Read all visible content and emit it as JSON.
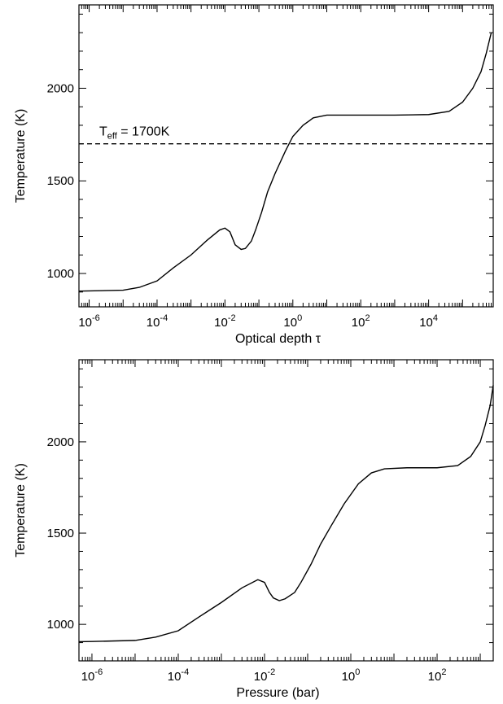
{
  "chart_data": [
    {
      "type": "line",
      "xlabel": "Optical depth τ",
      "ylabel": "Temperature (K)",
      "xscale": "log",
      "xlim": [
        5e-07,
        800000
      ],
      "ylim": [
        820,
        2450
      ],
      "x_ticks": [
        1e-06,
        0.0001,
        0.01,
        1,
        100,
        10000
      ],
      "x_tick_bases": [
        "10",
        "10",
        "10",
        "10",
        "10",
        "10"
      ],
      "x_tick_exponents": [
        "-6",
        "-4",
        "-2",
        "0",
        "2",
        "4"
      ],
      "y_ticks": [
        1000,
        1500,
        2000
      ],
      "y_tick_labels": [
        "1000",
        "1500",
        "2000"
      ],
      "reference_line": {
        "y": 1700,
        "style": "dashed",
        "label_main": "T",
        "label_sub": "eff",
        "label_rest": " = 1700K"
      },
      "series": [
        {
          "points": [
            [
              5e-07,
              905
            ],
            [
              1e-06,
              906
            ],
            [
              1e-05,
              910
            ],
            [
              3e-05,
              925
            ],
            [
              0.0001,
              960
            ],
            [
              0.0003,
              1030
            ],
            [
              0.001,
              1100
            ],
            [
              0.003,
              1180
            ],
            [
              0.007,
              1235
            ],
            [
              0.01,
              1245
            ],
            [
              0.014,
              1225
            ],
            [
              0.02,
              1155
            ],
            [
              0.03,
              1130
            ],
            [
              0.04,
              1135
            ],
            [
              0.06,
              1175
            ],
            [
              0.08,
              1235
            ],
            [
              0.12,
              1330
            ],
            [
              0.18,
              1440
            ],
            [
              0.3,
              1540
            ],
            [
              0.6,
              1660
            ],
            [
              1,
              1740
            ],
            [
              2,
              1800
            ],
            [
              4,
              1840
            ],
            [
              10,
              1855
            ],
            [
              100,
              1855
            ],
            [
              1000,
              1855
            ],
            [
              10000,
              1858
            ],
            [
              40000,
              1875
            ],
            [
              100000,
              1925
            ],
            [
              200000,
              2000
            ],
            [
              350000,
              2090
            ],
            [
              500000,
              2190
            ],
            [
              700000,
              2300
            ]
          ]
        }
      ]
    },
    {
      "type": "line",
      "xlabel": "Pressure (bar)",
      "ylabel": "Temperature (K)",
      "xscale": "log",
      "xlim": [
        5e-07,
        2000
      ],
      "ylim": [
        800,
        2450
      ],
      "x_ticks": [
        1e-06,
        0.0001,
        0.01,
        1,
        100
      ],
      "x_tick_bases": [
        "10",
        "10",
        "10",
        "10",
        "10"
      ],
      "x_tick_exponents": [
        "-6",
        "-4",
        "-2",
        "0",
        "2"
      ],
      "y_ticks": [
        1000,
        1500,
        2000
      ],
      "y_tick_labels": [
        "1000",
        "1500",
        "2000"
      ],
      "series": [
        {
          "points": [
            [
              5e-07,
              905
            ],
            [
              1e-06,
              906
            ],
            [
              1e-05,
              912
            ],
            [
              3e-05,
              930
            ],
            [
              0.0001,
              965
            ],
            [
              0.0003,
              1040
            ],
            [
              0.001,
              1120
            ],
            [
              0.003,
              1200
            ],
            [
              0.007,
              1245
            ],
            [
              0.01,
              1230
            ],
            [
              0.013,
              1175
            ],
            [
              0.016,
              1145
            ],
            [
              0.022,
              1130
            ],
            [
              0.03,
              1140
            ],
            [
              0.05,
              1175
            ],
            [
              0.07,
              1230
            ],
            [
              0.12,
              1330
            ],
            [
              0.2,
              1440
            ],
            [
              0.35,
              1540
            ],
            [
              0.7,
              1660
            ],
            [
              1.5,
              1770
            ],
            [
              3,
              1830
            ],
            [
              6,
              1852
            ],
            [
              20,
              1858
            ],
            [
              100,
              1858
            ],
            [
              300,
              1870
            ],
            [
              600,
              1920
            ],
            [
              1000,
              2000
            ],
            [
              1300,
              2090
            ],
            [
              1700,
              2200
            ],
            [
              2000,
              2310
            ]
          ]
        }
      ]
    }
  ]
}
